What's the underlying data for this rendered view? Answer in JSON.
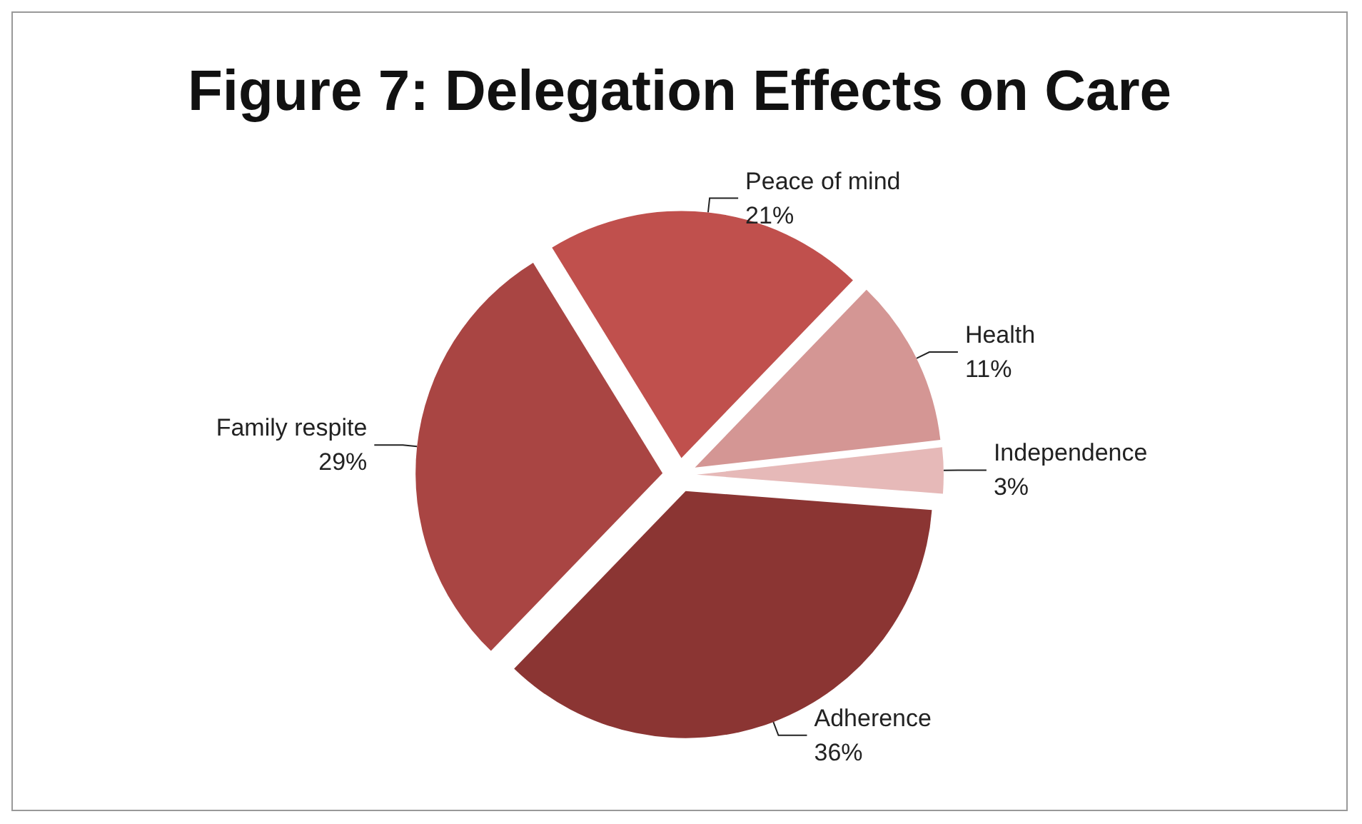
{
  "chart_data": {
    "type": "pie",
    "title": "Figure 7: Delegation Effects on Care",
    "categories": [
      "Health",
      "Independence",
      "Adherence",
      "Family respite",
      "Peace of mind"
    ],
    "values": [
      11,
      3,
      36,
      29,
      21
    ],
    "value_labels": [
      "11%",
      "3%",
      "36%",
      "29%",
      "21%"
    ],
    "colors": [
      "#d49694",
      "#e6b9b8",
      "#8b3533",
      "#a94543",
      "#c0504d"
    ],
    "legend": false
  }
}
